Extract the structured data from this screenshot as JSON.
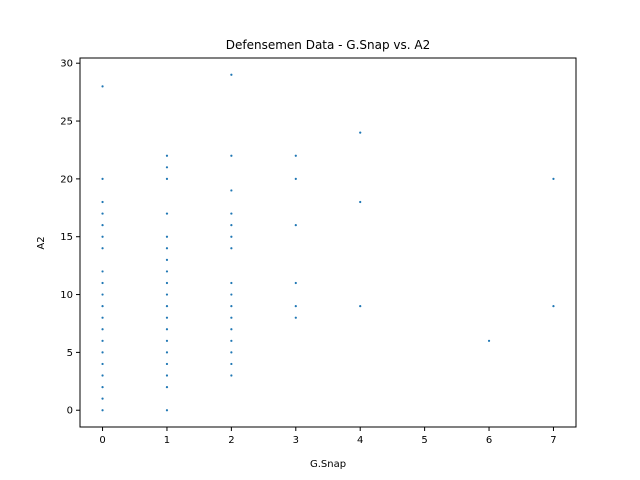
{
  "chart_data": {
    "type": "scatter",
    "title": "Defensemen Data - G.Snap vs. A2",
    "xlabel": "G.Snap",
    "ylabel": "A2",
    "xlim": [
      -0.35,
      7.35
    ],
    "ylim": [
      -1.45,
      30.45
    ],
    "xticks": [
      0,
      1,
      2,
      3,
      4,
      5,
      6,
      7
    ],
    "yticks": [
      0,
      5,
      10,
      15,
      20,
      25,
      30
    ],
    "grid": false,
    "legend": "none",
    "marker_color": "#1f77b4",
    "series": [
      {
        "points": [
          [
            0,
            0
          ],
          [
            0,
            1
          ],
          [
            0,
            2
          ],
          [
            0,
            3
          ],
          [
            0,
            4
          ],
          [
            0,
            5
          ],
          [
            0,
            6
          ],
          [
            0,
            7
          ],
          [
            0,
            8
          ],
          [
            0,
            9
          ],
          [
            0,
            10
          ],
          [
            0,
            11
          ],
          [
            0,
            12
          ],
          [
            0,
            14
          ],
          [
            0,
            15
          ],
          [
            0,
            16
          ],
          [
            0,
            17
          ],
          [
            0,
            18
          ],
          [
            0,
            20
          ],
          [
            0,
            28
          ],
          [
            1,
            0
          ],
          [
            1,
            2
          ],
          [
            1,
            3
          ],
          [
            1,
            4
          ],
          [
            1,
            5
          ],
          [
            1,
            6
          ],
          [
            1,
            7
          ],
          [
            1,
            8
          ],
          [
            1,
            9
          ],
          [
            1,
            10
          ],
          [
            1,
            11
          ],
          [
            1,
            12
          ],
          [
            1,
            13
          ],
          [
            1,
            14
          ],
          [
            1,
            15
          ],
          [
            1,
            17
          ],
          [
            1,
            20
          ],
          [
            1,
            21
          ],
          [
            1,
            22
          ],
          [
            2,
            3
          ],
          [
            2,
            4
          ],
          [
            2,
            5
          ],
          [
            2,
            6
          ],
          [
            2,
            7
          ],
          [
            2,
            8
          ],
          [
            2,
            9
          ],
          [
            2,
            10
          ],
          [
            2,
            11
          ],
          [
            2,
            14
          ],
          [
            2,
            15
          ],
          [
            2,
            16
          ],
          [
            2,
            17
          ],
          [
            2,
            19
          ],
          [
            2,
            22
          ],
          [
            2,
            29
          ],
          [
            3,
            8
          ],
          [
            3,
            9
          ],
          [
            3,
            11
          ],
          [
            3,
            16
          ],
          [
            3,
            20
          ],
          [
            3,
            22
          ],
          [
            4,
            9
          ],
          [
            4,
            18
          ],
          [
            4,
            24
          ],
          [
            6,
            6
          ],
          [
            7,
            9
          ],
          [
            7,
            20
          ]
        ]
      }
    ]
  }
}
